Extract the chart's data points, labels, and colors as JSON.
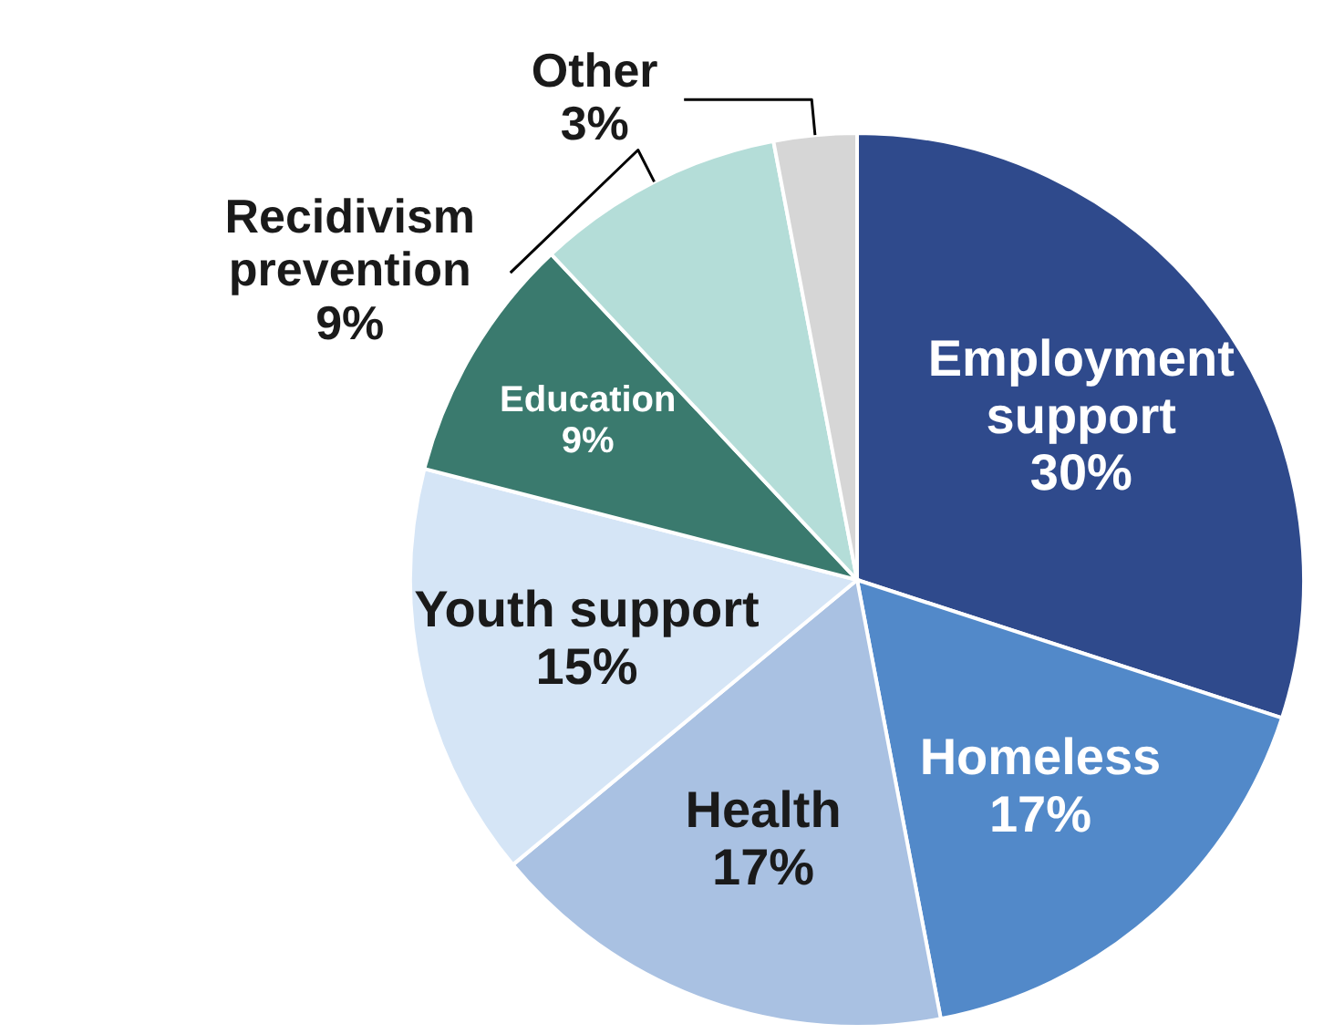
{
  "chart_data": {
    "type": "pie",
    "categories": [
      "Employment support",
      "Homeless",
      "Health",
      "Youth support",
      "Education",
      "Recidivism prevention",
      "Other"
    ],
    "values": [
      30,
      17,
      17,
      15,
      9,
      9,
      3
    ],
    "colors": [
      "#2f4a8c",
      "#5289c9",
      "#a9c1e2",
      "#d5e5f6",
      "#3a7a6e",
      "#b4ddd8",
      "#d6d6d6"
    ],
    "value_labels": [
      "30%",
      "17%",
      "17%",
      "15%",
      "9%",
      "9%",
      "3%"
    ]
  }
}
